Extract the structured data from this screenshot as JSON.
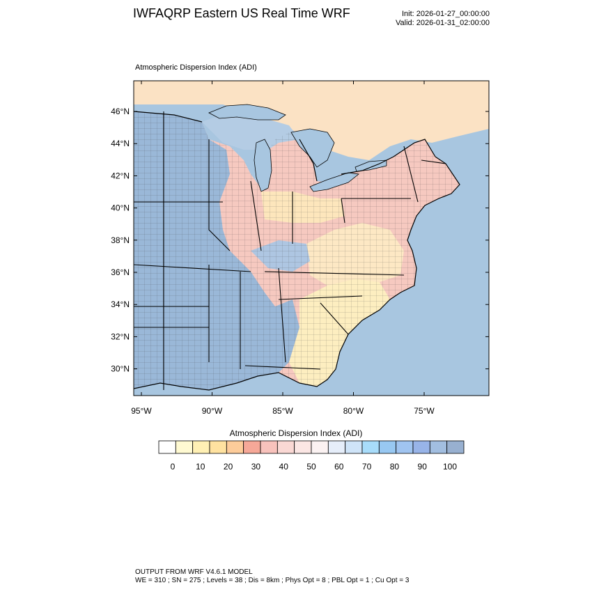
{
  "header": {
    "title": "IWFAQRP Eastern US Real Time WRF",
    "init": "Init: 2026-01-27_00:00:00",
    "valid": "Valid: 2026-01-31_02:00:00"
  },
  "map": {
    "subtitle": "Atmospheric Dispersion Index   (ADI)",
    "lat_labels": [
      "46°N",
      "44°N",
      "42°N",
      "40°N",
      "38°N",
      "36°N",
      "34°N",
      "32°N",
      "30°N"
    ],
    "lon_labels": [
      "95°W",
      "90°W",
      "85°W",
      "80°W",
      "75°W"
    ],
    "colors": {
      "ocean": "#a8c6e0",
      "land_red": "#f6c9c0",
      "land_yellow": "#fdeec0",
      "land_blue": "#9ab8d8",
      "border": "#000000"
    }
  },
  "colorbar": {
    "title": "Atmospheric Dispersion Index  (ADI)",
    "tick_labels": [
      "0",
      "10",
      "20",
      "30",
      "40",
      "50",
      "60",
      "70",
      "80",
      "90",
      "100"
    ],
    "colors": [
      "#ffffff",
      "#fffad2",
      "#fff0b4",
      "#ffe2a0",
      "#fdcc9a",
      "#f6a898",
      "#f8c2bc",
      "#fad8d4",
      "#fbe6e4",
      "#fbf2f2",
      "#e6eefa",
      "#cfe4f8",
      "#a8dcfa",
      "#98c8f2",
      "#a0c4f0",
      "#98b4e8",
      "#a2bee0",
      "#98b0d0"
    ]
  },
  "footer": {
    "line1": "OUTPUT FROM WRF V4.6.1 MODEL",
    "line2": "WE = 310 ; SN = 275 ; Levels = 38 ; Dis = 8km ; Phys Opt = 8 ; PBL Opt = 1 ; Cu Opt = 3"
  }
}
